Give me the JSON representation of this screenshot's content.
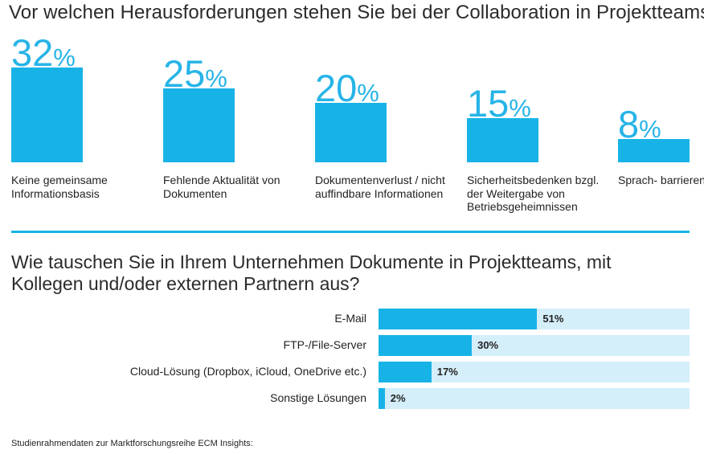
{
  "chart_data": [
    {
      "type": "bar",
      "title": "Vor welchen Herausforderungen stehen Sie bei der Collaboration in Projektteams?",
      "unit": "%",
      "categories": [
        "Keine gemeinsame Informationsbasis",
        "Fehlende Aktualität von Dokumenten",
        "Dokumentenverlust / nicht auffindbare Informationen",
        "Sicherheitsbedenken bzgl. der Weitergabe von Betriebsgeheimnissen",
        "Sprach- barrieren"
      ],
      "values": [
        32,
        25,
        20,
        15,
        8
      ],
      "value_labels": [
        "32",
        "25",
        "20",
        "15",
        "8"
      ],
      "orientation": "vertical",
      "colors": {
        "bar": "#18b3e6",
        "value_text": "#27b4e7"
      }
    },
    {
      "type": "bar",
      "title": "Wie tauschen Sie in Ihrem Unternehmen Dokumente in Projektteams, mit Kollegen und/oder externen Partnern aus?",
      "categories": [
        "E-Mail",
        "FTP-/File-Server",
        "Cloud-Lösung (Dropbox, iCloud, OneDrive etc.)",
        "Sonstige Lösungen"
      ],
      "values": [
        51,
        30,
        17,
        2
      ],
      "value_labels": [
        "51%",
        "30%",
        "17%",
        "2%"
      ],
      "orientation": "horizontal",
      "xlim": [
        0,
        100
      ],
      "colors": {
        "bar": "#18b3e6",
        "track": "#d4eefa"
      }
    }
  ],
  "footnote": "Studienrahmendaten zur Marktforschungsreihe ECM Insights:"
}
